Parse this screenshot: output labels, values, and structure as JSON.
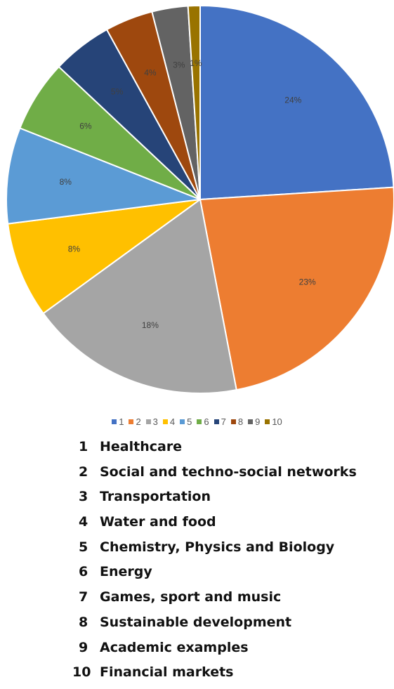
{
  "chart_data": {
    "type": "pie",
    "start_angle_deg": 0,
    "direction": "clockwise",
    "slices": [
      {
        "label": "1",
        "value": 24,
        "data_label": "24%",
        "color": "#4472C4"
      },
      {
        "label": "2",
        "value": 23,
        "data_label": "23%",
        "color": "#ED7D31"
      },
      {
        "label": "3",
        "value": 18,
        "data_label": "18%",
        "color": "#A5A5A5"
      },
      {
        "label": "4",
        "value": 8,
        "data_label": "8%",
        "color": "#FFC000"
      },
      {
        "label": "5",
        "value": 8,
        "data_label": "8%",
        "color": "#5B9BD5"
      },
      {
        "label": "6",
        "value": 6,
        "data_label": "6%",
        "color": "#70AD47"
      },
      {
        "label": "7",
        "value": 5,
        "data_label": "5%",
        "color": "#264478"
      },
      {
        "label": "8",
        "value": 4,
        "data_label": "4%",
        "color": "#9E480E"
      },
      {
        "label": "9",
        "value": 3,
        "data_label": "3%",
        "color": "#636363"
      },
      {
        "label": "10",
        "value": 1,
        "data_label": "1%",
        "color": "#997300"
      }
    ],
    "legend_position": "bottom"
  },
  "key": [
    {
      "num": "1",
      "text": "Healthcare"
    },
    {
      "num": "2",
      "text": "Social and techno-social networks"
    },
    {
      "num": "3",
      "text": "Transportation"
    },
    {
      "num": "4",
      "text": "Water and food"
    },
    {
      "num": "5",
      "text": "Chemistry, Physics and Biology"
    },
    {
      "num": "6",
      "text": "Energy"
    },
    {
      "num": "7",
      "text": "Games, sport and music"
    },
    {
      "num": "8",
      "text": "Sustainable development"
    },
    {
      "num": "9",
      "text": "Academic examples"
    },
    {
      "num": "10",
      "text": "Financial markets"
    }
  ]
}
